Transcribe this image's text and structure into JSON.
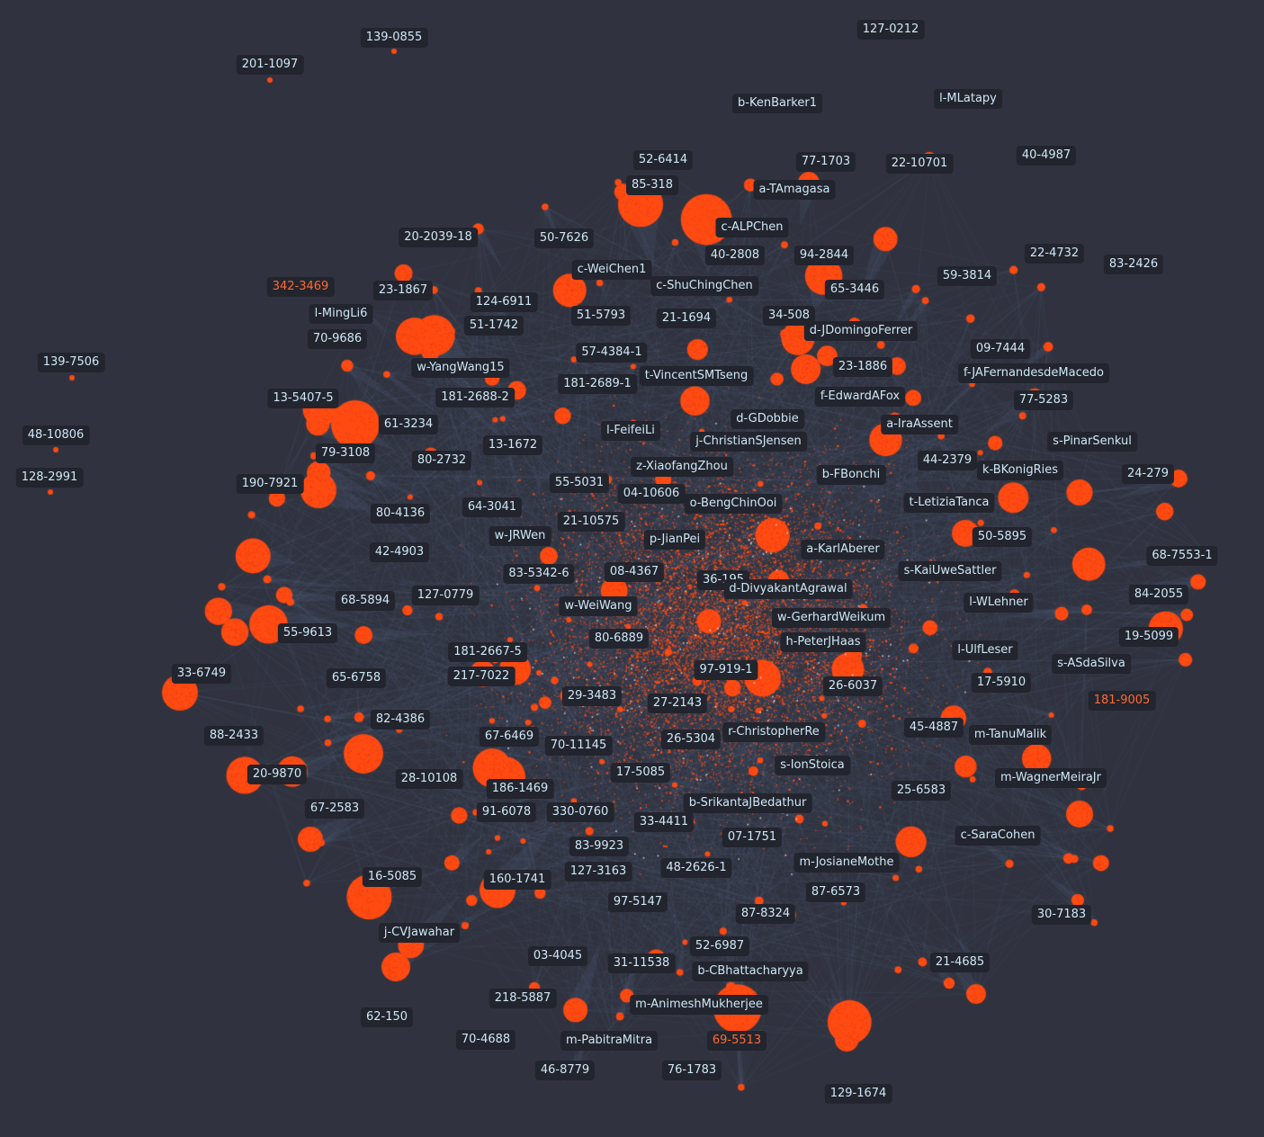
{
  "colors": {
    "background": "#30333f",
    "node": "#ff4a12",
    "edge": "#5a6c92",
    "label_bg": "#22252e",
    "label_text": "#cfe7f5",
    "label_highlight": "#ff6a33"
  },
  "labels": [
    {
      "text": "139-0855",
      "highlight": false
    },
    {
      "text": "201-1097",
      "highlight": false
    },
    {
      "text": "127-0212",
      "highlight": false
    },
    {
      "text": "l-MLatapy",
      "highlight": false
    },
    {
      "text": "b-KenBarker1",
      "highlight": false
    },
    {
      "text": "52-6414",
      "highlight": false
    },
    {
      "text": "77-1703",
      "highlight": false
    },
    {
      "text": "22-10701",
      "highlight": false
    },
    {
      "text": "40-4987",
      "highlight": false
    },
    {
      "text": "85-318",
      "highlight": false
    },
    {
      "text": "a-TAmagasa",
      "highlight": false
    },
    {
      "text": "c-ALPChen",
      "highlight": false
    },
    {
      "text": "20-2039-18",
      "highlight": false
    },
    {
      "text": "50-7626",
      "highlight": false
    },
    {
      "text": "40-2808",
      "highlight": false
    },
    {
      "text": "94-2844",
      "highlight": false
    },
    {
      "text": "22-4732",
      "highlight": false
    },
    {
      "text": "83-2426",
      "highlight": false
    },
    {
      "text": "c-WeiChen1",
      "highlight": false
    },
    {
      "text": "59-3814",
      "highlight": false
    },
    {
      "text": "342-3469",
      "highlight": true
    },
    {
      "text": "23-1867",
      "highlight": false
    },
    {
      "text": "c-ShuChingChen",
      "highlight": false
    },
    {
      "text": "65-3446",
      "highlight": false
    },
    {
      "text": "124-6911",
      "highlight": false
    },
    {
      "text": "l-MingLi6",
      "highlight": false
    },
    {
      "text": "51-5793",
      "highlight": false
    },
    {
      "text": "21-1694",
      "highlight": false
    },
    {
      "text": "34-508",
      "highlight": false
    },
    {
      "text": "51-1742",
      "highlight": false
    },
    {
      "text": "d-JDomingoFerrer",
      "highlight": false
    },
    {
      "text": "70-9686",
      "highlight": false
    },
    {
      "text": "09-7444",
      "highlight": false
    },
    {
      "text": "57-4384-1",
      "highlight": false
    },
    {
      "text": "139-7506",
      "highlight": false
    },
    {
      "text": "w-YangWang15",
      "highlight": false
    },
    {
      "text": "23-1886",
      "highlight": false
    },
    {
      "text": "f-JAFernandesdeMacedo",
      "highlight": false
    },
    {
      "text": "t-VincentSMTseng",
      "highlight": false
    },
    {
      "text": "181-2689-1",
      "highlight": false
    },
    {
      "text": "13-5407-5",
      "highlight": false
    },
    {
      "text": "181-2688-2",
      "highlight": false
    },
    {
      "text": "f-EdwardAFox",
      "highlight": false
    },
    {
      "text": "77-5283",
      "highlight": false
    },
    {
      "text": "d-GDobbie",
      "highlight": false
    },
    {
      "text": "61-3234",
      "highlight": false
    },
    {
      "text": "a-IraAssent",
      "highlight": false
    },
    {
      "text": "l-FeifeiLi",
      "highlight": false
    },
    {
      "text": "48-10806",
      "highlight": false
    },
    {
      "text": "j-ChristianSJensen",
      "highlight": false
    },
    {
      "text": "s-PinarSenkul",
      "highlight": false
    },
    {
      "text": "13-1672",
      "highlight": false
    },
    {
      "text": "79-3108",
      "highlight": false
    },
    {
      "text": "44-2379",
      "highlight": false
    },
    {
      "text": "80-2732",
      "highlight": false
    },
    {
      "text": "z-XiaofangZhou",
      "highlight": false
    },
    {
      "text": "k-BKonigRies",
      "highlight": false
    },
    {
      "text": "128-2991",
      "highlight": false
    },
    {
      "text": "b-FBonchi",
      "highlight": false
    },
    {
      "text": "24-279",
      "highlight": false
    },
    {
      "text": "190-7921",
      "highlight": false
    },
    {
      "text": "55-5031",
      "highlight": false
    },
    {
      "text": "04-10606",
      "highlight": false
    },
    {
      "text": "o-BengChinOoi",
      "highlight": false
    },
    {
      "text": "t-LetiziaTanca",
      "highlight": false
    },
    {
      "text": "64-3041",
      "highlight": false
    },
    {
      "text": "80-4136",
      "highlight": false
    },
    {
      "text": "21-10575",
      "highlight": false
    },
    {
      "text": "w-JRWen",
      "highlight": false
    },
    {
      "text": "p-JianPei",
      "highlight": false
    },
    {
      "text": "50-5895",
      "highlight": false
    },
    {
      "text": "42-4903",
      "highlight": false
    },
    {
      "text": "a-KarlAberer",
      "highlight": false
    },
    {
      "text": "68-7553-1",
      "highlight": false
    },
    {
      "text": "83-5342-6",
      "highlight": false
    },
    {
      "text": "08-4367",
      "highlight": false
    },
    {
      "text": "s-KaiUweSattler",
      "highlight": false
    },
    {
      "text": "36-195",
      "highlight": false
    },
    {
      "text": "d-DivyakantAgrawal",
      "highlight": false
    },
    {
      "text": "127-0779",
      "highlight": false
    },
    {
      "text": "84-2055",
      "highlight": false
    },
    {
      "text": "68-5894",
      "highlight": false
    },
    {
      "text": "l-WLehner",
      "highlight": false
    },
    {
      "text": "w-WeiWang",
      "highlight": false
    },
    {
      "text": "w-GerhardWeikum",
      "highlight": false
    },
    {
      "text": "55-9613",
      "highlight": false
    },
    {
      "text": "19-5099",
      "highlight": false
    },
    {
      "text": "80-6889",
      "highlight": false
    },
    {
      "text": "h-PeterJHaas",
      "highlight": false
    },
    {
      "text": "181-2667-5",
      "highlight": false
    },
    {
      "text": "l-UlfLeser",
      "highlight": false
    },
    {
      "text": "s-ASdaSilva",
      "highlight": false
    },
    {
      "text": "33-6749",
      "highlight": false
    },
    {
      "text": "217-7022",
      "highlight": false
    },
    {
      "text": "97-919-1",
      "highlight": false
    },
    {
      "text": "65-6758",
      "highlight": false
    },
    {
      "text": "17-5910",
      "highlight": false
    },
    {
      "text": "26-6037",
      "highlight": false
    },
    {
      "text": "29-3483",
      "highlight": false
    },
    {
      "text": "181-9005",
      "highlight": true
    },
    {
      "text": "27-2143",
      "highlight": false
    },
    {
      "text": "82-4386",
      "highlight": false
    },
    {
      "text": "45-4887",
      "highlight": false
    },
    {
      "text": "r-ChristopherRe",
      "highlight": false
    },
    {
      "text": "88-2433",
      "highlight": false
    },
    {
      "text": "m-TanuMalik",
      "highlight": false
    },
    {
      "text": "67-6469",
      "highlight": false
    },
    {
      "text": "26-5304",
      "highlight": false
    },
    {
      "text": "70-11145",
      "highlight": false
    },
    {
      "text": "s-IonStoica",
      "highlight": false
    },
    {
      "text": "20-9870",
      "highlight": false
    },
    {
      "text": "17-5085",
      "highlight": false
    },
    {
      "text": "m-WagnerMeiraJr",
      "highlight": false
    },
    {
      "text": "28-10108",
      "highlight": false
    },
    {
      "text": "186-1469",
      "highlight": false
    },
    {
      "text": "25-6583",
      "highlight": false
    },
    {
      "text": "b-SrikantaJBedathur",
      "highlight": false
    },
    {
      "text": "67-2583",
      "highlight": false
    },
    {
      "text": "91-6078",
      "highlight": false
    },
    {
      "text": "330-0760",
      "highlight": false
    },
    {
      "text": "33-4411",
      "highlight": false
    },
    {
      "text": "07-1751",
      "highlight": false
    },
    {
      "text": "c-SaraCohen",
      "highlight": false
    },
    {
      "text": "83-9923",
      "highlight": false
    },
    {
      "text": "m-JosianeMothe",
      "highlight": false
    },
    {
      "text": "127-3163",
      "highlight": false
    },
    {
      "text": "48-2626-1",
      "highlight": false
    },
    {
      "text": "16-5085",
      "highlight": false
    },
    {
      "text": "160-1741",
      "highlight": false
    },
    {
      "text": "87-6573",
      "highlight": false
    },
    {
      "text": "97-5147",
      "highlight": false
    },
    {
      "text": "30-7183",
      "highlight": false
    },
    {
      "text": "87-8324",
      "highlight": false
    },
    {
      "text": "j-CVJawahar",
      "highlight": false
    },
    {
      "text": "52-6987",
      "highlight": false
    },
    {
      "text": "03-4045",
      "highlight": false
    },
    {
      "text": "21-4685",
      "highlight": false
    },
    {
      "text": "31-11538",
      "highlight": false
    },
    {
      "text": "b-CBhattacharyya",
      "highlight": false
    },
    {
      "text": "218-5887",
      "highlight": false
    },
    {
      "text": "m-AnimeshMukherjee",
      "highlight": false
    },
    {
      "text": "62-150",
      "highlight": false
    },
    {
      "text": "70-4688",
      "highlight": false
    },
    {
      "text": "m-PabitraMitra",
      "highlight": false
    },
    {
      "text": "69-5513",
      "highlight": true
    },
    {
      "text": "46-8779",
      "highlight": false
    },
    {
      "text": "76-1783",
      "highlight": false
    },
    {
      "text": "129-1674",
      "highlight": false
    }
  ]
}
